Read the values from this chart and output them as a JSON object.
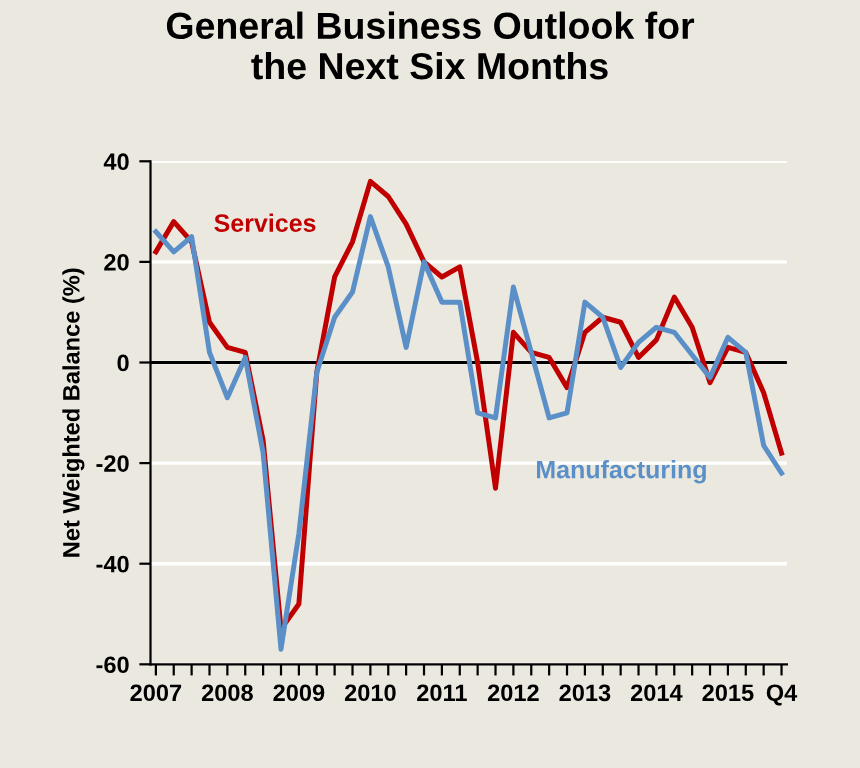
{
  "chart_data": {
    "type": "line",
    "title": "General Business Outlook for\nthe Next Six Months",
    "ylabel": "Net Weighted Balance (%)",
    "categories": [
      "2007",
      null,
      null,
      null,
      "2008",
      null,
      null,
      null,
      "2009",
      null,
      null,
      null,
      "2010",
      null,
      null,
      null,
      "2011",
      null,
      null,
      null,
      "2012",
      null,
      null,
      null,
      "2013",
      null,
      null,
      null,
      "2014",
      null,
      null,
      null,
      "2015",
      null,
      null,
      "Q4"
    ],
    "series": [
      {
        "name": "Services",
        "color": "#c00000",
        "values": [
          22,
          28,
          24,
          8,
          3,
          2,
          -15.5,
          -53,
          -48,
          -2,
          17,
          24,
          36,
          33,
          27.5,
          20,
          17,
          19,
          0,
          -25,
          6,
          2,
          1,
          -5,
          6,
          9,
          8,
          1,
          4.5,
          13,
          7,
          -4,
          3,
          2,
          -6,
          -18
        ]
      },
      {
        "name": "Manufacturing",
        "color": "#5b8fc7",
        "values": [
          26,
          22,
          25,
          2,
          -7,
          1,
          -18,
          -57,
          -34,
          -2,
          9,
          14,
          29,
          19,
          3,
          20,
          12,
          12,
          -10,
          -11,
          15,
          2,
          -11,
          -10,
          12,
          9,
          -1,
          4,
          7,
          6,
          1.5,
          -3,
          5,
          2,
          -16.5,
          -22
        ]
      }
    ],
    "ylim": [
      -60,
      40
    ],
    "yticks": [
      -60,
      -40,
      -20,
      0,
      20,
      40
    ],
    "grid": "y",
    "ref_lines": [
      {
        "axis": "y",
        "value": 0,
        "color": "#000000"
      }
    ]
  }
}
